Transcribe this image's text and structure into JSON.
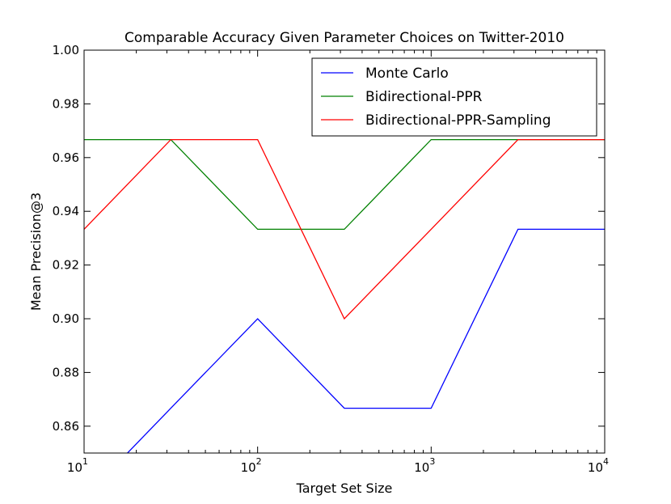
{
  "chart_data": {
    "type": "line",
    "title": "Comparable Accuracy Given Parameter Choices  on Twitter-2010",
    "xlabel": "Target Set Size",
    "ylabel": "Mean Precision@3",
    "xscale": "log",
    "xlim": [
      10,
      10000
    ],
    "ylim": [
      0.85,
      1.0
    ],
    "x_ticks": [
      {
        "value": 10,
        "base": "10",
        "exp": "1"
      },
      {
        "value": 100,
        "base": "10",
        "exp": "2"
      },
      {
        "value": 1000,
        "base": "10",
        "exp": "3"
      },
      {
        "value": 10000,
        "base": "10",
        "exp": "4"
      }
    ],
    "y_ticks": [
      "0.86",
      "0.88",
      "0.90",
      "0.92",
      "0.94",
      "0.96",
      "0.98",
      "1.00"
    ],
    "legend_position": "top-right",
    "grid": false,
    "series": [
      {
        "name": "Monte Carlo",
        "color": "#0000ff",
        "x": [
          10,
          31.6,
          100,
          316,
          1000,
          3162,
          10000
        ],
        "y": [
          0.8333,
          0.8667,
          0.9,
          0.8667,
          0.8667,
          0.9333,
          0.9333
        ]
      },
      {
        "name": "Bidirectional-PPR",
        "color": "#008000",
        "x": [
          10,
          31.6,
          100,
          316,
          1000,
          3162,
          10000
        ],
        "y": [
          0.9667,
          0.9667,
          0.9333,
          0.9333,
          0.9667,
          0.9667,
          0.9667
        ]
      },
      {
        "name": "Bidirectional-PPR-Sampling",
        "color": "#ff0000",
        "x": [
          10,
          31.6,
          100,
          316,
          1000,
          3162,
          10000
        ],
        "y": [
          0.9333,
          0.9667,
          0.9667,
          0.9,
          0.9333,
          0.9667,
          0.9667
        ]
      }
    ]
  }
}
